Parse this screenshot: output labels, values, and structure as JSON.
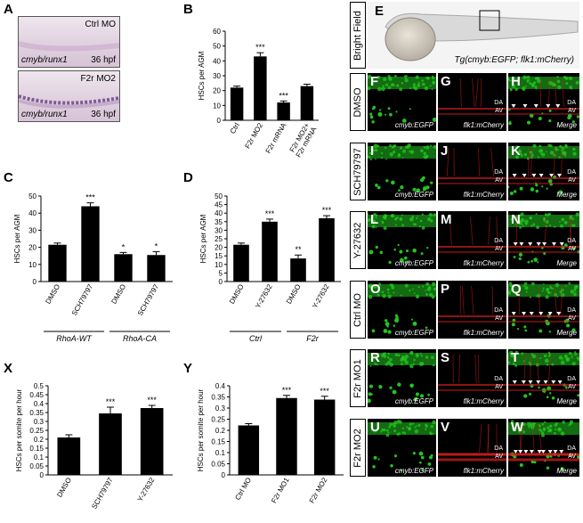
{
  "panel_letters": {
    "A": "A",
    "B": "B",
    "C": "C",
    "D": "D",
    "X": "X",
    "Y": "Y",
    "E": "E",
    "F": "F",
    "G": "G",
    "H": "H",
    "I": "I",
    "J": "J",
    "K": "K",
    "L": "L",
    "M": "M",
    "N": "N",
    "O": "O",
    "P": "P",
    "Q": "Q",
    "R": "R",
    "S": "S",
    "T": "T",
    "U": "U",
    "V": "V",
    "W": "W"
  },
  "panel_a": {
    "top": {
      "condition": "Ctrl MO",
      "probe": "cmyb/runx1",
      "stage": "36 hpf"
    },
    "bottom": {
      "condition": "F2r MO2",
      "probe": "cmyb/runx1",
      "stage": "36 hpf"
    }
  },
  "panel_e": {
    "side_label": "Bright Field",
    "caption": "Tg(cmyb:EGFP; flk1:mCherry)"
  },
  "confocal": {
    "rows": [
      "DMSO",
      "SCH79797",
      "Y-27632",
      "Ctrl MO",
      "F2r MO1",
      "F2r MO2"
    ],
    "col_captions": [
      "cmyb:EGFP",
      "flk1:mCherry",
      "Merge"
    ],
    "da": "DA",
    "av": "AV"
  },
  "colors": {
    "egfp": "#22c41f",
    "mcherry": "#d21e1e",
    "arrowhead": "#ffffff",
    "bar": "#000000"
  },
  "chart_data": [
    {
      "id": "B",
      "type": "bar",
      "ylabel": "HSCs per AGM",
      "ylim": [
        0,
        60
      ],
      "yticks": [
        0,
        10,
        20,
        30,
        40,
        50,
        60
      ],
      "categories": [
        "Ctrl",
        "F2r MO2",
        "F2r mRNA",
        "F2r MO2+\nF2r mRNA"
      ],
      "values": [
        22,
        43,
        12,
        23
      ],
      "errors": [
        1,
        2.5,
        1,
        1.3
      ],
      "annotations": [
        "",
        "***",
        "***",
        ""
      ]
    },
    {
      "id": "C",
      "type": "bar",
      "ylabel": "HSCs per AGM",
      "ylim": [
        0,
        50
      ],
      "yticks": [
        0,
        10,
        20,
        30,
        40,
        50
      ],
      "categories": [
        "DMSO",
        "SCH79797",
        "DMSO",
        "SCH79797"
      ],
      "values": [
        21.5,
        44,
        16,
        15.5
      ],
      "errors": [
        1,
        2,
        1,
        2
      ],
      "annotations": [
        "",
        "***",
        "*",
        "*"
      ],
      "groups": [
        {
          "label": "RhoA-WT",
          "span": [
            0,
            1
          ]
        },
        {
          "label": "RhoA-CA",
          "span": [
            2,
            3
          ]
        }
      ]
    },
    {
      "id": "D",
      "type": "bar",
      "ylabel": "HSCs per AGM",
      "ylim": [
        0,
        50
      ],
      "yticks": [
        0,
        5,
        10,
        15,
        20,
        25,
        30,
        35,
        40,
        45,
        50
      ],
      "categories": [
        "DMSO",
        "Y-27632",
        "DMSO",
        "Y-27632"
      ],
      "values": [
        21.5,
        35,
        13.5,
        37
      ],
      "errors": [
        1,
        1.5,
        2,
        1.5
      ],
      "annotations": [
        "",
        "***",
        "**",
        "***"
      ],
      "groups": [
        {
          "label": "Ctrl",
          "span": [
            0,
            1
          ]
        },
        {
          "label": "F2r",
          "span": [
            2,
            3
          ]
        }
      ]
    },
    {
      "id": "X",
      "type": "bar",
      "ylabel": "HSCs per somite per hour",
      "ylim": [
        0,
        0.5
      ],
      "yticks": [
        0,
        0.05,
        0.1,
        0.15,
        0.2,
        0.25,
        0.3,
        0.35,
        0.4,
        0.45,
        0.5
      ],
      "categories": [
        "DMSO",
        "SCH79797",
        "Y-27632"
      ],
      "values": [
        0.21,
        0.345,
        0.375
      ],
      "errors": [
        0.015,
        0.035,
        0.015
      ],
      "annotations": [
        "",
        "***",
        "***"
      ]
    },
    {
      "id": "Y",
      "type": "bar",
      "ylabel": "HSCs per somite per hour",
      "ylim": [
        0,
        0.4
      ],
      "yticks": [
        0,
        0.05,
        0.1,
        0.15,
        0.2,
        0.25,
        0.3,
        0.35,
        0.4
      ],
      "categories": [
        "Ctrl MO",
        "F2r MO1",
        "F2r MO2"
      ],
      "values": [
        0.222,
        0.345,
        0.338
      ],
      "errors": [
        0.008,
        0.012,
        0.015
      ],
      "annotations": [
        "",
        "***",
        "***"
      ]
    }
  ]
}
